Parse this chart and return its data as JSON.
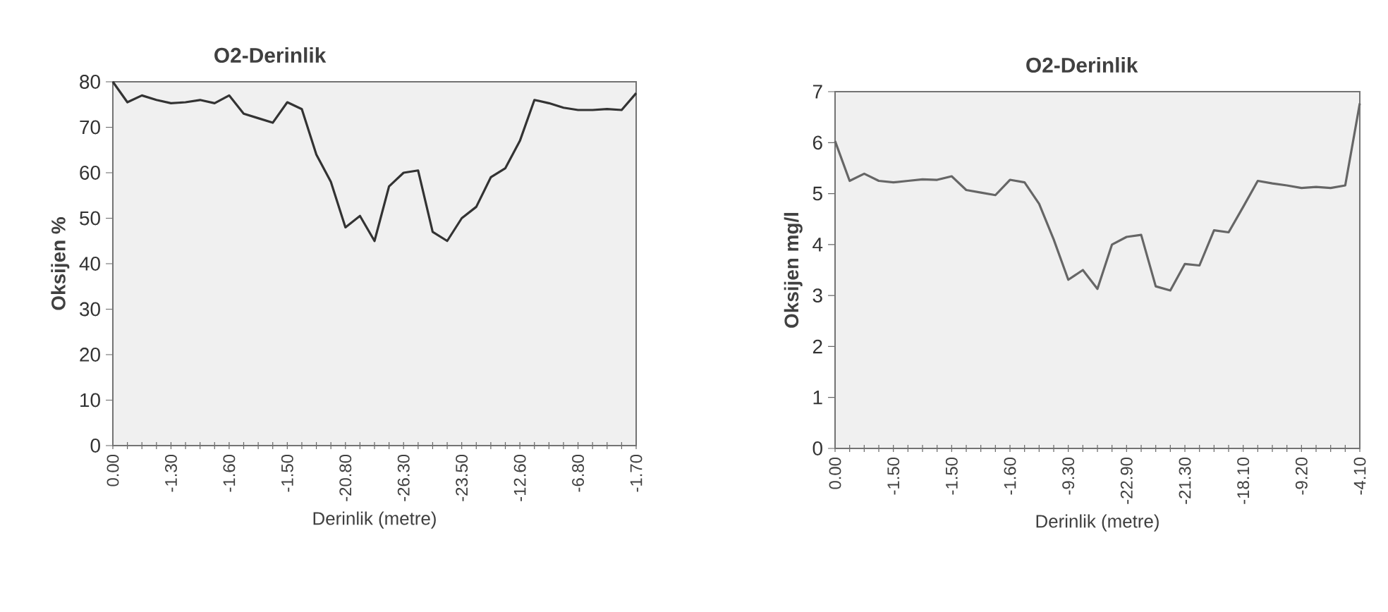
{
  "chart_data": [
    {
      "type": "line",
      "title": "O2-Derinlik",
      "xlabel": "Derinlik (metre)",
      "ylabel": "Oksijen %",
      "color": "#333333",
      "categories": [
        "0.00",
        null,
        null,
        null,
        "-1.30",
        null,
        null,
        null,
        "-1.60",
        null,
        null,
        null,
        "-1.50",
        null,
        null,
        null,
        "-20.80",
        null,
        null,
        null,
        "-26.30",
        null,
        null,
        null,
        "-23.50",
        null,
        null,
        null,
        "-12.60",
        null,
        null,
        null,
        "-6.80",
        null,
        null,
        null,
        "-1.70"
      ],
      "values": [
        80,
        75.5,
        77,
        76,
        75.3,
        75.5,
        76,
        75.3,
        77,
        73,
        72,
        71,
        75.5,
        74,
        64,
        58,
        48,
        50.5,
        45,
        57,
        60,
        60.5,
        47,
        45,
        50,
        52.5,
        59,
        61,
        67,
        76,
        75.3,
        74.3,
        73.8,
        73.8,
        74,
        73.8,
        77.5
      ],
      "ylim": [
        0,
        80
      ],
      "yticks": [
        0,
        10,
        20,
        30,
        40,
        50,
        60,
        70,
        80
      ]
    },
    {
      "type": "line",
      "title": "O2-Derinlik",
      "xlabel": "Derinlik (metre)",
      "ylabel": "Oksijen mg/l",
      "color": "#666666",
      "categories": [
        "0.00",
        null,
        null,
        null,
        "-1.50",
        null,
        null,
        null,
        "-1.50",
        null,
        null,
        null,
        "-1.60",
        null,
        null,
        null,
        "-9.30",
        null,
        null,
        null,
        "-22.90",
        null,
        null,
        null,
        "-21.30",
        null,
        null,
        null,
        "-18.10",
        null,
        null,
        null,
        "-9.20",
        null,
        null,
        null,
        "-4.10"
      ],
      "values": [
        6.03,
        5.25,
        5.39,
        5.25,
        5.22,
        5.25,
        5.28,
        5.27,
        5.34,
        5.07,
        5.02,
        4.97,
        5.27,
        5.22,
        4.8,
        4.1,
        3.31,
        3.5,
        3.13,
        4.0,
        4.15,
        4.19,
        3.18,
        3.1,
        3.62,
        3.59,
        4.28,
        4.24,
        4.74,
        5.25,
        5.2,
        5.16,
        5.11,
        5.13,
        5.11,
        5.16,
        6.77
      ],
      "ylim": [
        0,
        7
      ],
      "yticks": [
        0,
        1,
        2,
        3,
        4,
        5,
        6,
        7
      ]
    }
  ]
}
